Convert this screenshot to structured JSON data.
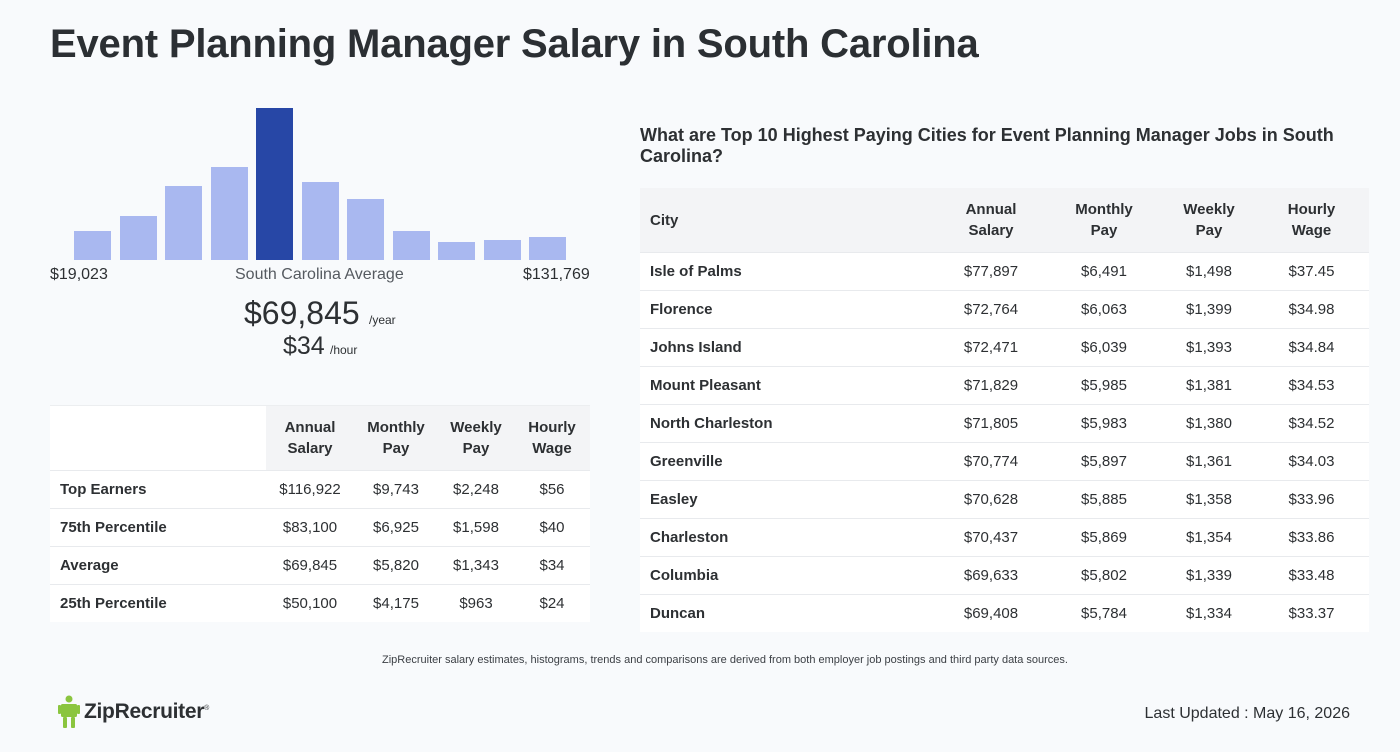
{
  "title": "Event Planning Manager Salary in South Carolina",
  "histogram": {
    "bars": [
      0.19,
      0.29,
      0.49,
      0.61,
      1.0,
      0.51,
      0.4,
      0.19,
      0.12,
      0.13,
      0.15
    ],
    "highlight_index": 4,
    "min_label": "$19,023",
    "avg_label": "South Carolina Average",
    "max_label": "$131,769",
    "bar_color": "#a9b8f0",
    "highlight_color": "#2747a6"
  },
  "average": {
    "year": "$69,845",
    "year_unit": "/year",
    "hour": "$34",
    "hour_unit": "/hour"
  },
  "percentile_table": {
    "headers": [
      "Annual Salary",
      "Monthly Pay",
      "Weekly Pay",
      "Hourly Wage"
    ],
    "rows": [
      {
        "label": "Top Earners",
        "annual": "$116,922",
        "monthly": "$9,743",
        "weekly": "$2,248",
        "hourly": "$56"
      },
      {
        "label": "75th Percentile",
        "annual": "$83,100",
        "monthly": "$6,925",
        "weekly": "$1,598",
        "hourly": "$40"
      },
      {
        "label": "Average",
        "annual": "$69,845",
        "monthly": "$5,820",
        "weekly": "$1,343",
        "hourly": "$34"
      },
      {
        "label": "25th Percentile",
        "annual": "$50,100",
        "monthly": "$4,175",
        "weekly": "$963",
        "hourly": "$24"
      }
    ]
  },
  "cities": {
    "title": "What are Top 10 Highest Paying Cities for Event Planning Manager Jobs in South Carolina?",
    "headers": [
      "City",
      "Annual Salary",
      "Monthly Pay",
      "Weekly Pay",
      "Hourly Wage"
    ],
    "rows": [
      {
        "city": "Isle of Palms",
        "annual": "$77,897",
        "monthly": "$6,491",
        "weekly": "$1,498",
        "hourly": "$37.45"
      },
      {
        "city": "Florence",
        "annual": "$72,764",
        "monthly": "$6,063",
        "weekly": "$1,399",
        "hourly": "$34.98"
      },
      {
        "city": "Johns Island",
        "annual": "$72,471",
        "monthly": "$6,039",
        "weekly": "$1,393",
        "hourly": "$34.84"
      },
      {
        "city": "Mount Pleasant",
        "annual": "$71,829",
        "monthly": "$5,985",
        "weekly": "$1,381",
        "hourly": "$34.53"
      },
      {
        "city": "North Charleston",
        "annual": "$71,805",
        "monthly": "$5,983",
        "weekly": "$1,380",
        "hourly": "$34.52"
      },
      {
        "city": "Greenville",
        "annual": "$70,774",
        "monthly": "$5,897",
        "weekly": "$1,361",
        "hourly": "$34.03"
      },
      {
        "city": "Easley",
        "annual": "$70,628",
        "monthly": "$5,885",
        "weekly": "$1,358",
        "hourly": "$33.96"
      },
      {
        "city": "Charleston",
        "annual": "$70,437",
        "monthly": "$5,869",
        "weekly": "$1,354",
        "hourly": "$33.86"
      },
      {
        "city": "Columbia",
        "annual": "$69,633",
        "monthly": "$5,802",
        "weekly": "$1,339",
        "hourly": "$33.48"
      },
      {
        "city": "Duncan",
        "annual": "$69,408",
        "monthly": "$5,784",
        "weekly": "$1,334",
        "hourly": "$33.37"
      }
    ]
  },
  "footer": {
    "disclaimer": "ZipRecruiter salary estimates, histograms, trends and comparisons are derived from both employer job postings and third party data sources.",
    "logo_text": "ZipRecruiter",
    "logo_mark": "®",
    "logo_icon": "ziprecruiter-person-icon",
    "logo_color": "#8bc53f",
    "last_updated": "Last Updated : May 16, 2026"
  }
}
